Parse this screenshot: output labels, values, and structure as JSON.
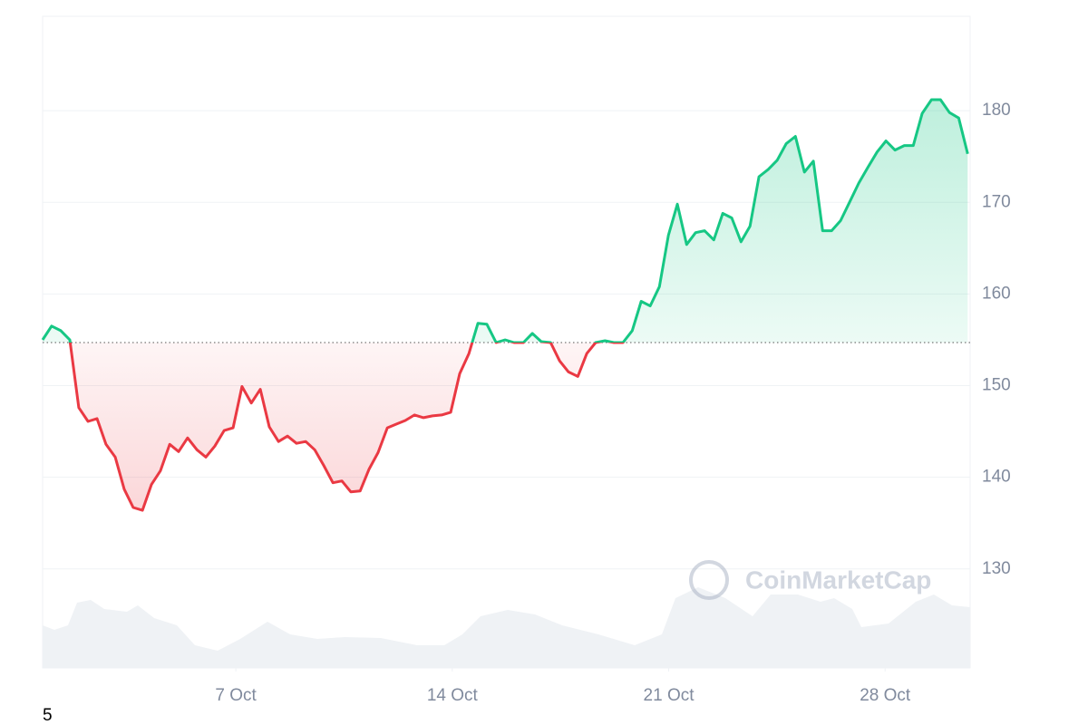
{
  "chart_data": {
    "type": "line",
    "watermark": "CoinMarketCap",
    "footnote": "5",
    "baseline": 154.7,
    "up_color": "#16c784",
    "down_color": "#ea3943",
    "x": [
      0.75,
      1.04,
      1.34,
      1.63,
      1.92,
      2.22,
      2.51,
      2.8,
      3.1,
      3.39,
      3.68,
      3.98,
      4.27,
      4.56,
      4.86,
      5.15,
      5.44,
      5.74,
      6.03,
      6.32,
      6.62,
      6.91,
      7.2,
      7.5,
      7.79,
      8.08,
      8.38,
      8.67,
      8.96,
      9.26,
      9.55,
      9.84,
      10.14,
      10.43,
      10.72,
      11.02,
      11.31,
      11.6,
      11.9,
      12.19,
      12.48,
      12.78,
      13.07,
      13.36,
      13.66,
      13.95,
      14.24,
      14.54,
      14.83,
      15.12,
      15.42,
      15.71,
      16.0,
      16.3,
      16.59,
      16.88,
      17.18,
      17.47,
      17.76,
      18.06,
      18.35,
      18.64,
      18.94,
      19.23,
      19.52,
      19.82,
      20.11,
      20.4,
      20.7,
      20.99,
      21.28,
      21.58,
      21.87,
      22.16,
      22.46,
      22.75,
      23.04,
      23.34,
      23.63,
      23.92,
      24.22,
      24.51,
      24.8,
      25.1,
      25.39,
      25.68,
      25.98,
      26.27,
      26.56,
      26.86,
      27.15,
      27.44,
      27.74,
      28.03,
      28.32,
      28.62,
      28.91,
      29.2,
      29.5,
      29.79,
      30.08,
      30.38,
      30.67
    ],
    "series": [
      {
        "values": [
          155.0,
          156.5,
          156.0,
          155.0,
          147.6,
          146.1,
          146.4,
          143.6,
          142.2,
          138.7,
          136.7,
          136.4,
          139.2,
          140.7,
          143.6,
          142.8,
          144.3,
          143.0,
          142.2,
          143.4,
          145.1,
          145.4,
          149.9,
          148.1,
          149.6,
          145.5,
          143.9,
          144.5,
          143.7,
          143.9,
          143.0,
          141.3,
          139.4,
          139.6,
          138.4,
          138.5,
          140.9,
          142.7,
          145.4,
          145.8,
          146.2,
          146.8,
          146.5,
          146.7,
          146.8,
          147.1,
          151.3,
          153.5,
          156.8,
          156.7,
          154.7,
          155.0,
          154.7,
          154.7,
          155.7,
          154.8,
          154.7,
          152.7,
          151.5,
          151.0,
          153.5,
          154.7,
          154.9,
          154.7,
          154.7,
          156.0,
          159.2,
          158.7,
          160.8,
          166.4,
          169.8,
          165.4,
          166.7,
          166.9,
          165.9,
          168.8,
          168.3,
          165.7,
          167.4,
          172.8,
          173.6,
          174.6,
          176.4,
          177.2,
          173.3,
          174.5,
          166.9,
          166.9,
          168.0,
          170.1,
          172.1,
          173.8,
          175.5,
          176.7,
          175.7,
          176.2,
          176.2,
          179.7,
          181.2,
          181.2,
          179.8,
          179.2,
          175.3
        ]
      }
    ],
    "xlim": [
      0.75,
      30.75
    ],
    "xticks": [
      {
        "value": 7,
        "label": "7 Oct"
      },
      {
        "value": 14,
        "label": "14 Oct"
      },
      {
        "value": 21,
        "label": "21 Oct"
      },
      {
        "value": 28,
        "label": "28 Oct"
      }
    ],
    "ylim": [
      119.2,
      190.3
    ],
    "yticks": [
      130,
      140,
      150,
      160,
      170,
      180
    ],
    "grid": true
  }
}
